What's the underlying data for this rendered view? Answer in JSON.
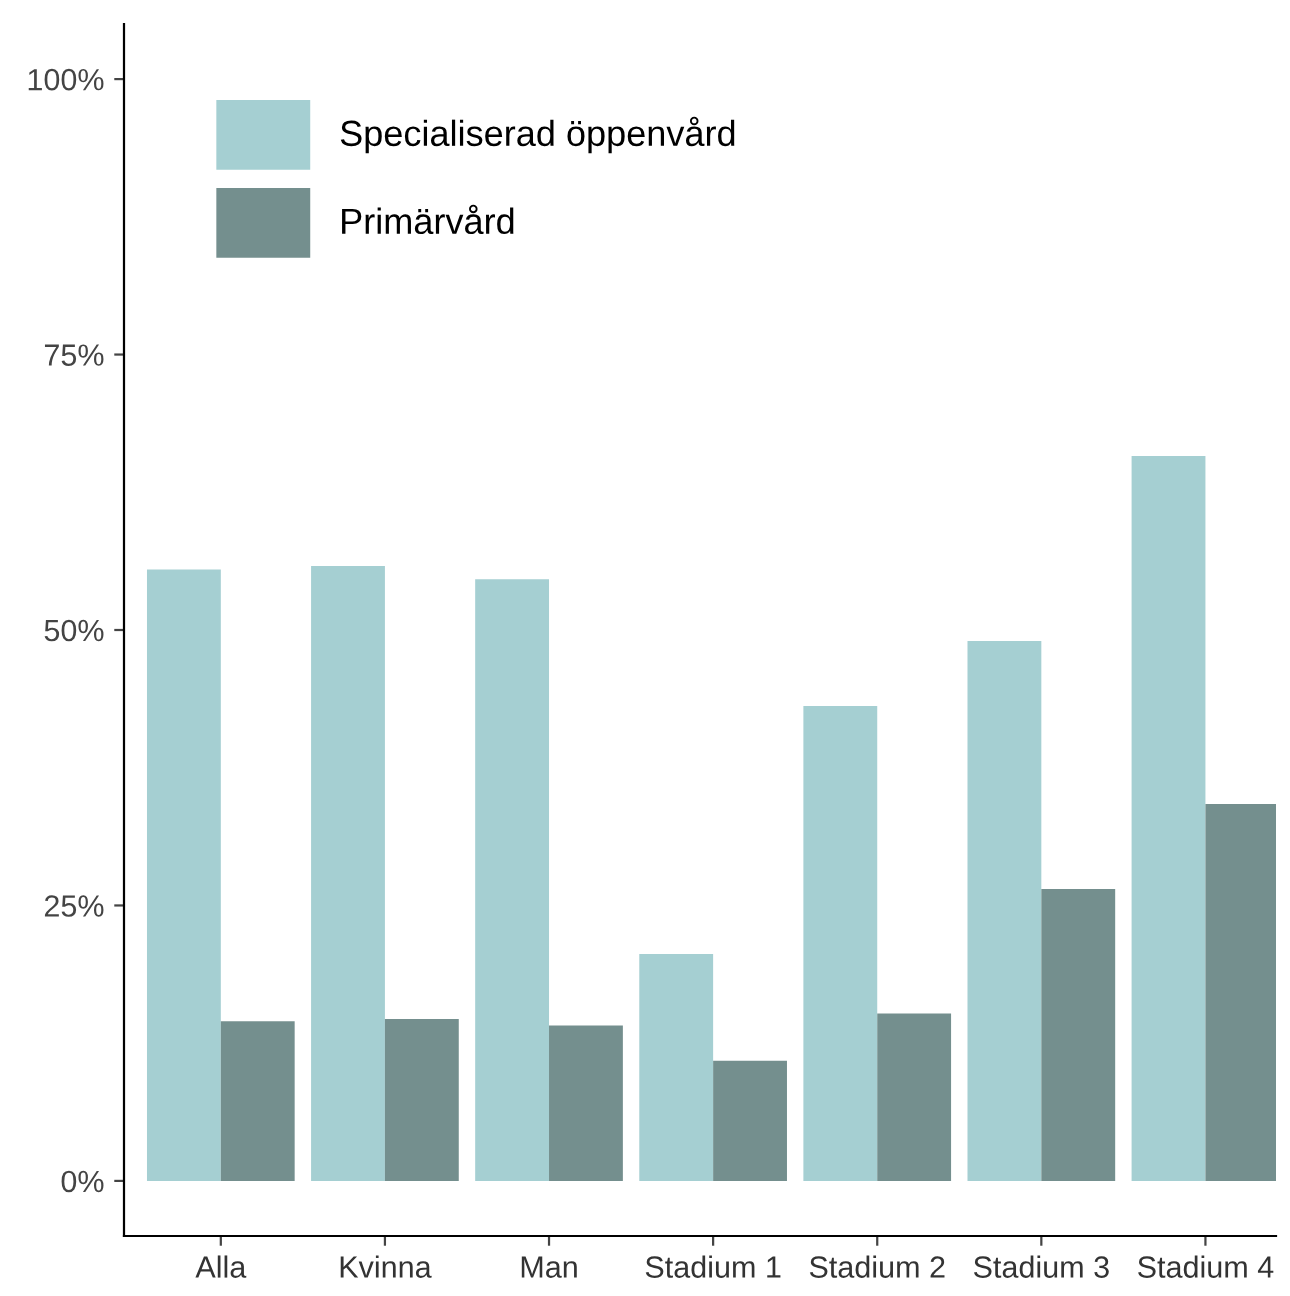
{
  "chart_data": {
    "type": "bar",
    "categories": [
      "Alla",
      "Kvinna",
      "Man",
      "Stadium 1",
      "Stadium 2",
      "Stadium 3",
      "Stadium 4"
    ],
    "series": [
      {
        "name": "Specialiserad öppenvård",
        "color": "#a5cfd2",
        "values": [
          55.5,
          55.8,
          54.6,
          20.6,
          43.1,
          49.0,
          65.8
        ]
      },
      {
        "name": "Primärvård",
        "color": "#748f8e",
        "values": [
          14.5,
          14.7,
          14.1,
          10.9,
          15.2,
          26.5,
          34.2
        ]
      }
    ],
    "ylim": [
      -5,
      105
    ],
    "yticks": [
      {
        "value": 0,
        "label": "0%"
      },
      {
        "value": 25,
        "label": "25%"
      },
      {
        "value": 50,
        "label": "50%"
      },
      {
        "value": 75,
        "label": "75%"
      },
      {
        "value": 100,
        "label": "100%"
      }
    ],
    "grid": false,
    "legend": "top left"
  }
}
